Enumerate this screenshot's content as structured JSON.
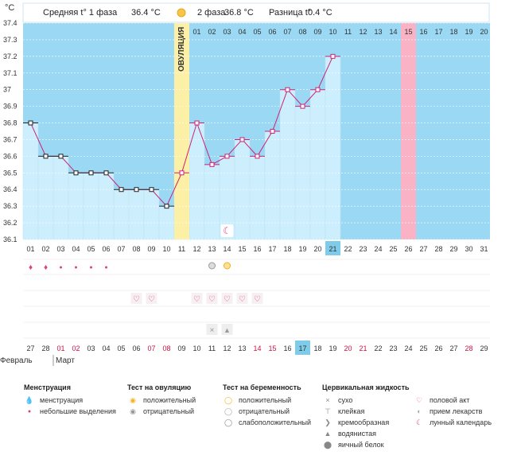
{
  "header": {
    "phase1_label": "Средняя t° 1 фаза",
    "phase1_value": "36.4 °C",
    "phase2_label": "2 фаза",
    "phase2_value": "36.8 °C",
    "diff_label": "Разница t°",
    "diff_value": "0.4 °C"
  },
  "unit_label": "°C",
  "ovulation_label": "ОВУЛЯЦИЯ",
  "chart_data": {
    "type": "line",
    "y_ticks": [
      "36.1",
      "36.2",
      "36.3",
      "36.4",
      "36.5",
      "36.6",
      "36.7",
      "36.8",
      "36.9",
      "37",
      "37.1",
      "37.2",
      "37.3",
      "37.4"
    ],
    "ylim": [
      36.1,
      37.4
    ],
    "days": [
      "01",
      "02",
      "03",
      "04",
      "05",
      "06",
      "07",
      "08",
      "09",
      "10",
      "11",
      "12",
      "13",
      "14",
      "15",
      "16",
      "17",
      "18",
      "19",
      "20",
      "21",
      "22",
      "23",
      "24",
      "25",
      "26",
      "27",
      "28",
      "29",
      "30",
      "31"
    ],
    "temperatures": [
      36.8,
      36.6,
      36.6,
      36.5,
      36.5,
      36.5,
      36.4,
      36.4,
      36.4,
      36.3,
      36.5,
      36.8,
      36.55,
      36.6,
      36.7,
      36.6,
      36.75,
      37.0,
      36.9,
      37.0,
      37.2
    ],
    "ovulation_day_index": 10,
    "cycle_day_labels": [
      "01",
      "02",
      "03",
      "04",
      "05",
      "06",
      "07",
      "08",
      "09",
      "10",
      "11",
      "12",
      "13",
      "14",
      "15",
      "16",
      "17",
      "18",
      "19",
      "20"
    ],
    "highlighted_cycle_day": "15",
    "highlighted_day": "21",
    "calendar_dates": [
      "27",
      "28",
      "01",
      "02",
      "03",
      "04",
      "05",
      "06",
      "07",
      "08",
      "09",
      "10",
      "11",
      "12",
      "13",
      "14",
      "15",
      "16",
      "17",
      "18",
      "19",
      "20",
      "21",
      "22",
      "23",
      "24",
      "25",
      "26",
      "27",
      "28",
      "29"
    ],
    "red_date_indices": [
      2,
      3,
      8,
      9,
      15,
      16,
      21,
      22,
      29
    ],
    "highlighted_date_index": 18,
    "months": [
      "Февраль",
      "Март"
    ]
  },
  "legend": {
    "menstruation": {
      "title": "Менструация",
      "items": [
        "менструация",
        "небольшие выделения"
      ]
    },
    "ovulation_test": {
      "title": "Тест на овуляцию",
      "items": [
        "положительный",
        "отрицательный"
      ]
    },
    "pregnancy_test": {
      "title": "Тест на беременность",
      "items": [
        "положительный",
        "отрицательный",
        "слабоположительный"
      ]
    },
    "cervical": {
      "title": "Цервикальная жидкость",
      "items": [
        "сухо",
        "клейкая",
        "кремообразная",
        "водянистая",
        "яичный белок"
      ]
    },
    "other": {
      "items": [
        "половой акт",
        "прием лекарств",
        "лунный календарь"
      ]
    }
  },
  "colors": {
    "bg_blue": "#9ad8f3",
    "bar": "#cdeefc",
    "ovulation": "#fcefa6",
    "cycle_highlight": "#f9b3c5",
    "line": "#cc2277",
    "icon_pink": "#e0407a",
    "day_highlight": "#7fcbea"
  }
}
